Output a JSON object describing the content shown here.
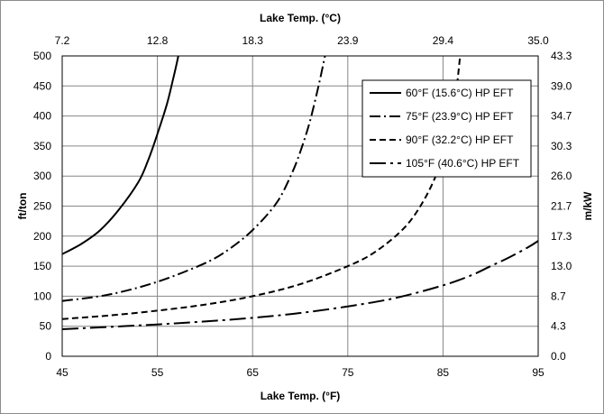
{
  "chart_data": {
    "type": "line",
    "title": "",
    "xlabel": "Lake Temp.  (°F)",
    "x2label": "Lake Temp.  (°C)",
    "ylabel": "ft/ton",
    "y2label": "m/kW",
    "xlim": [
      45,
      95
    ],
    "ylim": [
      0,
      500
    ],
    "x_ticks": [
      45,
      55,
      65,
      75,
      85,
      95
    ],
    "y_ticks": [
      0,
      50,
      100,
      150,
      200,
      250,
      300,
      350,
      400,
      450,
      500
    ],
    "x2_tick_labels": [
      "7.2",
      "12.8",
      "18.3",
      "23.9",
      "29.4",
      "35.0"
    ],
    "y2_tick_labels": [
      "0.0",
      "4.3",
      "8.7",
      "13.0",
      "17.3",
      "21.7",
      "26.0",
      "30.3",
      "34.7",
      "39.0",
      "43.3"
    ],
    "grid": true,
    "legend_position": "top-right",
    "series": [
      {
        "name": "60°F (15.6°C) HP EFT",
        "dash": "solid",
        "x": [
          45,
          47,
          49,
          51,
          53,
          54,
          55,
          56,
          56.7,
          57.2
        ],
        "y": [
          170,
          187,
          210,
          245,
          290,
          325,
          370,
          420,
          465,
          500
        ]
      },
      {
        "name": "75°F (23.9°C) HP EFT",
        "dash": "dash-dot",
        "x": [
          45,
          50,
          55,
          60,
          62.5,
          65,
          67.5,
          69,
          70,
          71,
          72,
          72.6
        ],
        "y": [
          92,
          103,
          124,
          155,
          178,
          210,
          255,
          300,
          340,
          390,
          455,
          500
        ]
      },
      {
        "name": "90°F (32.2°C) HP EFT",
        "dash": "dashed",
        "x": [
          45,
          50,
          55,
          60,
          65,
          70,
          75,
          78,
          81,
          83,
          84.5,
          85.5,
          86.3,
          86.8
        ],
        "y": [
          62,
          68,
          76,
          86,
          100,
          120,
          150,
          175,
          215,
          260,
          310,
          360,
          430,
          500
        ]
      },
      {
        "name": "105°F (40.6°C) HP EFT",
        "dash": "long-dash-dot",
        "x": [
          45,
          50,
          55,
          60,
          65,
          70,
          75,
          80,
          85,
          88,
          90,
          92,
          94,
          95
        ],
        "y": [
          45,
          49,
          53,
          58,
          64,
          72,
          83,
          97,
          118,
          135,
          150,
          165,
          182,
          192
        ]
      }
    ]
  }
}
